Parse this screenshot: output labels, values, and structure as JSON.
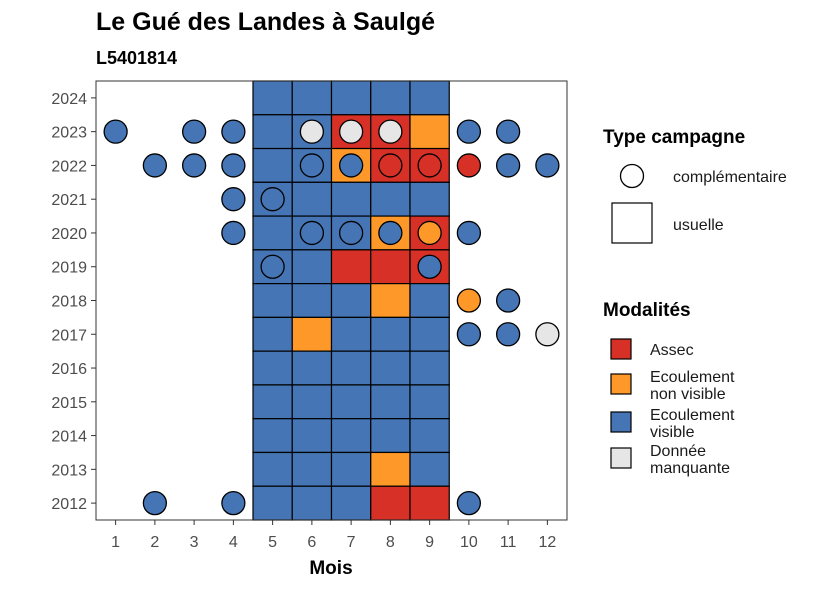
{
  "chart_data": {
    "type": "heatmap",
    "title": "Le Gué des Landes à Saulgé",
    "subtitle": "L5401814",
    "xlabel": "Mois",
    "ylabel": "",
    "x_ticks": [
      "1",
      "2",
      "3",
      "4",
      "5",
      "6",
      "7",
      "8",
      "9",
      "10",
      "11",
      "12"
    ],
    "y_ticks": [
      "2012",
      "2013",
      "2014",
      "2015",
      "2016",
      "2017",
      "2018",
      "2019",
      "2020",
      "2021",
      "2022",
      "2023",
      "2024"
    ],
    "xlim": [
      0.5,
      12.5
    ],
    "ylim": [
      2011.5,
      2024.5
    ],
    "colors": {
      "Assec": "#d73027",
      "Ecoulement non visible": "#fe9929",
      "Ecoulement visible": "#4575b4",
      "Donnée manquante": "#e6e6e6"
    },
    "usuelle": [
      {
        "year": 2024,
        "month": 5,
        "value": "Ecoulement visible"
      },
      {
        "year": 2024,
        "month": 6,
        "value": "Ecoulement visible"
      },
      {
        "year": 2024,
        "month": 7,
        "value": "Ecoulement visible"
      },
      {
        "year": 2024,
        "month": 8,
        "value": "Ecoulement visible"
      },
      {
        "year": 2024,
        "month": 9,
        "value": "Ecoulement visible"
      },
      {
        "year": 2023,
        "month": 5,
        "value": "Ecoulement visible"
      },
      {
        "year": 2023,
        "month": 6,
        "value": "Ecoulement visible"
      },
      {
        "year": 2023,
        "month": 7,
        "value": "Assec"
      },
      {
        "year": 2023,
        "month": 8,
        "value": "Assec"
      },
      {
        "year": 2023,
        "month": 9,
        "value": "Ecoulement non visible"
      },
      {
        "year": 2022,
        "month": 5,
        "value": "Ecoulement visible"
      },
      {
        "year": 2022,
        "month": 6,
        "value": "Ecoulement visible"
      },
      {
        "year": 2022,
        "month": 7,
        "value": "Ecoulement non visible"
      },
      {
        "year": 2022,
        "month": 8,
        "value": "Assec"
      },
      {
        "year": 2022,
        "month": 9,
        "value": "Assec"
      },
      {
        "year": 2021,
        "month": 5,
        "value": "Ecoulement visible"
      },
      {
        "year": 2021,
        "month": 6,
        "value": "Ecoulement visible"
      },
      {
        "year": 2021,
        "month": 7,
        "value": "Ecoulement visible"
      },
      {
        "year": 2021,
        "month": 8,
        "value": "Ecoulement visible"
      },
      {
        "year": 2021,
        "month": 9,
        "value": "Ecoulement visible"
      },
      {
        "year": 2020,
        "month": 5,
        "value": "Ecoulement visible"
      },
      {
        "year": 2020,
        "month": 6,
        "value": "Ecoulement visible"
      },
      {
        "year": 2020,
        "month": 7,
        "value": "Ecoulement visible"
      },
      {
        "year": 2020,
        "month": 8,
        "value": "Ecoulement non visible"
      },
      {
        "year": 2020,
        "month": 9,
        "value": "Assec"
      },
      {
        "year": 2019,
        "month": 5,
        "value": "Ecoulement visible"
      },
      {
        "year": 2019,
        "month": 6,
        "value": "Ecoulement visible"
      },
      {
        "year": 2019,
        "month": 7,
        "value": "Assec"
      },
      {
        "year": 2019,
        "month": 8,
        "value": "Assec"
      },
      {
        "year": 2019,
        "month": 9,
        "value": "Assec"
      },
      {
        "year": 2018,
        "month": 5,
        "value": "Ecoulement visible"
      },
      {
        "year": 2018,
        "month": 6,
        "value": "Ecoulement visible"
      },
      {
        "year": 2018,
        "month": 7,
        "value": "Ecoulement visible"
      },
      {
        "year": 2018,
        "month": 8,
        "value": "Ecoulement non visible"
      },
      {
        "year": 2018,
        "month": 9,
        "value": "Ecoulement visible"
      },
      {
        "year": 2017,
        "month": 5,
        "value": "Ecoulement visible"
      },
      {
        "year": 2017,
        "month": 6,
        "value": "Ecoulement non visible"
      },
      {
        "year": 2017,
        "month": 7,
        "value": "Ecoulement visible"
      },
      {
        "year": 2017,
        "month": 8,
        "value": "Ecoulement visible"
      },
      {
        "year": 2017,
        "month": 9,
        "value": "Ecoulement visible"
      },
      {
        "year": 2016,
        "month": 5,
        "value": "Ecoulement visible"
      },
      {
        "year": 2016,
        "month": 6,
        "value": "Ecoulement visible"
      },
      {
        "year": 2016,
        "month": 7,
        "value": "Ecoulement visible"
      },
      {
        "year": 2016,
        "month": 8,
        "value": "Ecoulement visible"
      },
      {
        "year": 2016,
        "month": 9,
        "value": "Ecoulement visible"
      },
      {
        "year": 2015,
        "month": 5,
        "value": "Ecoulement visible"
      },
      {
        "year": 2015,
        "month": 6,
        "value": "Ecoulement visible"
      },
      {
        "year": 2015,
        "month": 7,
        "value": "Ecoulement visible"
      },
      {
        "year": 2015,
        "month": 8,
        "value": "Ecoulement visible"
      },
      {
        "year": 2015,
        "month": 9,
        "value": "Ecoulement visible"
      },
      {
        "year": 2014,
        "month": 5,
        "value": "Ecoulement visible"
      },
      {
        "year": 2014,
        "month": 6,
        "value": "Ecoulement visible"
      },
      {
        "year": 2014,
        "month": 7,
        "value": "Ecoulement visible"
      },
      {
        "year": 2014,
        "month": 8,
        "value": "Ecoulement visible"
      },
      {
        "year": 2014,
        "month": 9,
        "value": "Ecoulement visible"
      },
      {
        "year": 2013,
        "month": 5,
        "value": "Ecoulement visible"
      },
      {
        "year": 2013,
        "month": 6,
        "value": "Ecoulement visible"
      },
      {
        "year": 2013,
        "month": 7,
        "value": "Ecoulement visible"
      },
      {
        "year": 2013,
        "month": 8,
        "value": "Ecoulement non visible"
      },
      {
        "year": 2013,
        "month": 9,
        "value": "Ecoulement visible"
      },
      {
        "year": 2012,
        "month": 5,
        "value": "Ecoulement visible"
      },
      {
        "year": 2012,
        "month": 6,
        "value": "Ecoulement visible"
      },
      {
        "year": 2012,
        "month": 7,
        "value": "Ecoulement visible"
      },
      {
        "year": 2012,
        "month": 8,
        "value": "Assec"
      },
      {
        "year": 2012,
        "month": 9,
        "value": "Assec"
      }
    ],
    "complementaire": [
      {
        "year": 2023,
        "month": 1,
        "value": "Ecoulement visible"
      },
      {
        "year": 2023,
        "month": 3,
        "value": "Ecoulement visible"
      },
      {
        "year": 2023,
        "month": 4,
        "value": "Ecoulement visible"
      },
      {
        "year": 2023,
        "month": 6,
        "value": "Donnée manquante"
      },
      {
        "year": 2023,
        "month": 7,
        "value": "Donnée manquante"
      },
      {
        "year": 2023,
        "month": 8,
        "value": "Donnée manquante"
      },
      {
        "year": 2023,
        "month": 10,
        "value": "Ecoulement visible"
      },
      {
        "year": 2023,
        "month": 11,
        "value": "Ecoulement visible"
      },
      {
        "year": 2022,
        "month": 2,
        "value": "Ecoulement visible"
      },
      {
        "year": 2022,
        "month": 3,
        "value": "Ecoulement visible"
      },
      {
        "year": 2022,
        "month": 4,
        "value": "Ecoulement visible"
      },
      {
        "year": 2022,
        "month": 6,
        "value": "Ecoulement visible"
      },
      {
        "year": 2022,
        "month": 7,
        "value": "Ecoulement visible"
      },
      {
        "year": 2022,
        "month": 8,
        "value": "Assec"
      },
      {
        "year": 2022,
        "month": 9,
        "value": "Assec"
      },
      {
        "year": 2022,
        "month": 10,
        "value": "Assec"
      },
      {
        "year": 2022,
        "month": 11,
        "value": "Ecoulement visible"
      },
      {
        "year": 2022,
        "month": 12,
        "value": "Ecoulement visible"
      },
      {
        "year": 2021,
        "month": 4,
        "value": "Ecoulement visible"
      },
      {
        "year": 2021,
        "month": 5,
        "value": "Ecoulement visible"
      },
      {
        "year": 2020,
        "month": 4,
        "value": "Ecoulement visible"
      },
      {
        "year": 2020,
        "month": 6,
        "value": "Ecoulement visible"
      },
      {
        "year": 2020,
        "month": 7,
        "value": "Ecoulement visible"
      },
      {
        "year": 2020,
        "month": 8,
        "value": "Ecoulement visible"
      },
      {
        "year": 2020,
        "month": 9,
        "value": "Ecoulement non visible"
      },
      {
        "year": 2020,
        "month": 10,
        "value": "Ecoulement visible"
      },
      {
        "year": 2019,
        "month": 5,
        "value": "Ecoulement visible"
      },
      {
        "year": 2019,
        "month": 9,
        "value": "Ecoulement visible"
      },
      {
        "year": 2018,
        "month": 10,
        "value": "Ecoulement non visible"
      },
      {
        "year": 2018,
        "month": 11,
        "value": "Ecoulement visible"
      },
      {
        "year": 2017,
        "month": 10,
        "value": "Ecoulement visible"
      },
      {
        "year": 2017,
        "month": 11,
        "value": "Ecoulement visible"
      },
      {
        "year": 2017,
        "month": 12,
        "value": "Donnée manquante"
      },
      {
        "year": 2012,
        "month": 2,
        "value": "Ecoulement visible"
      },
      {
        "year": 2012,
        "month": 4,
        "value": "Ecoulement visible"
      },
      {
        "year": 2012,
        "month": 10,
        "value": "Ecoulement visible"
      }
    ],
    "legend": {
      "placement": "right",
      "type_title": "Type campagne",
      "type_entries": [
        "complémentaire",
        "usuelle"
      ],
      "modalites_title": "Modalités",
      "modalites_entries": [
        {
          "key": "Assec",
          "lines": [
            "Assec"
          ]
        },
        {
          "key": "Ecoulement non visible",
          "lines": [
            "Ecoulement",
            "non visible"
          ]
        },
        {
          "key": "Ecoulement visible",
          "lines": [
            "Ecoulement",
            "visible"
          ]
        },
        {
          "key": "Donnée manquante",
          "lines": [
            "Donnée",
            "manquante"
          ]
        }
      ]
    }
  }
}
